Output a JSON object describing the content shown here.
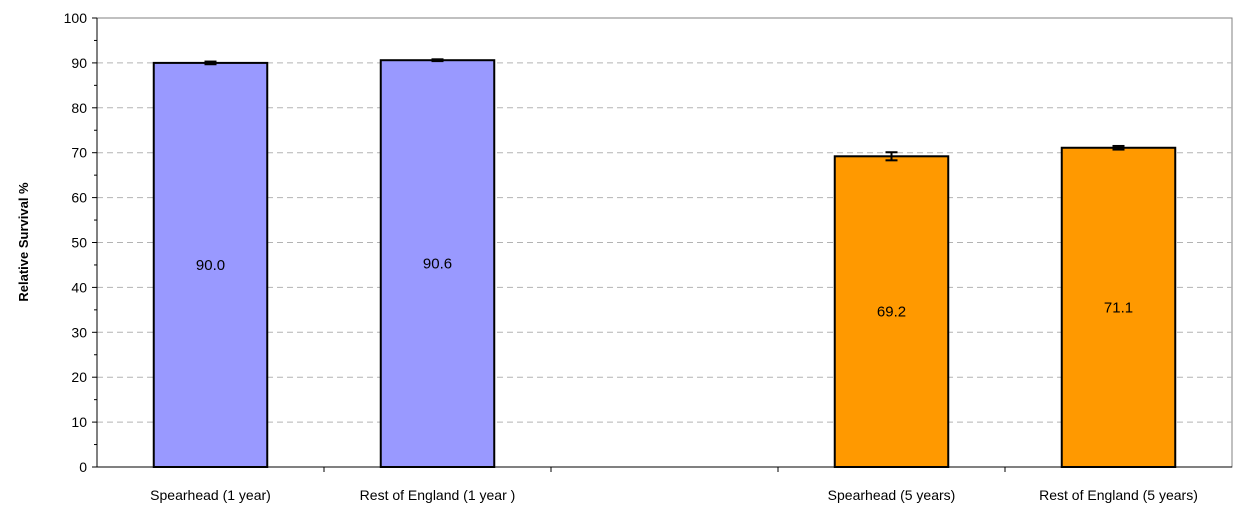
{
  "chart_data": {
    "type": "bar",
    "title": "",
    "xlabel": "",
    "ylabel": "Relative Survival %",
    "ylim": [
      0,
      100
    ],
    "yticks": [
      0,
      10,
      20,
      30,
      40,
      50,
      60,
      70,
      80,
      90,
      100
    ],
    "grid": "horizontal dashed",
    "legend": "none",
    "slots": [
      "Spearhead (1 year)",
      "Rest of England (1 year )",
      "",
      "Spearhead (5 years)",
      "Rest of England (5 years)"
    ],
    "categories": [
      "Spearhead (1 year)",
      "Rest of England (1 year )",
      "Spearhead (5 years)",
      "Rest of England (5 years)"
    ],
    "values": [
      90.0,
      90.6,
      69.2,
      71.1
    ],
    "value_labels": [
      "90.0",
      "90.6",
      "69.2",
      "71.1"
    ],
    "error_low": [
      89.7,
      90.4,
      68.3,
      70.7
    ],
    "error_high": [
      90.3,
      90.8,
      70.1,
      71.5
    ],
    "bar_colors": [
      "#9999ff",
      "#9999ff",
      "#ff9900",
      "#ff9900"
    ]
  }
}
